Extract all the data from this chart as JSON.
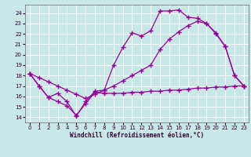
{
  "xlabel": "Windchill (Refroidissement éolien,°C)",
  "bg_color": "#c8e8e8",
  "line_color": "#990099",
  "grid_color": "#aadddd",
  "xlim": [
    -0.5,
    23.5
  ],
  "ylim": [
    13.5,
    24.8
  ],
  "yticks": [
    14,
    15,
    16,
    17,
    18,
    19,
    20,
    21,
    22,
    23,
    24
  ],
  "xticks": [
    0,
    1,
    2,
    3,
    4,
    5,
    6,
    7,
    8,
    9,
    10,
    11,
    12,
    13,
    14,
    15,
    16,
    17,
    18,
    19,
    20,
    21,
    22,
    23
  ],
  "line1_x": [
    0,
    1,
    2,
    3,
    4,
    5,
    6,
    7,
    8,
    9,
    10,
    11,
    12,
    13,
    14,
    15,
    16,
    17,
    18,
    19,
    20,
    21,
    22,
    23
  ],
  "line1_y": [
    18.2,
    17.0,
    15.9,
    16.3,
    15.5,
    14.1,
    15.5,
    16.5,
    16.6,
    19.0,
    20.7,
    22.1,
    21.8,
    22.3,
    24.2,
    24.2,
    24.3,
    23.6,
    23.5,
    23.0,
    22.1,
    20.8,
    18.0,
    17.0
  ],
  "line2_x": [
    0,
    1,
    2,
    3,
    4,
    5,
    6,
    7,
    8,
    9,
    10,
    11,
    12,
    13,
    14,
    15,
    16,
    17,
    18,
    19,
    20,
    21,
    22,
    23
  ],
  "line2_y": [
    18.2,
    17.8,
    17.4,
    17.0,
    16.6,
    16.2,
    15.8,
    16.2,
    16.6,
    17.0,
    17.5,
    18.0,
    18.5,
    19.0,
    20.5,
    21.5,
    22.2,
    22.8,
    23.2,
    23.0,
    22.0,
    20.8,
    18.0,
    17.0
  ],
  "line3_x": [
    0,
    1,
    2,
    3,
    4,
    5,
    6,
    7,
    8,
    9,
    10,
    11,
    12,
    13,
    14,
    15,
    16,
    17,
    18,
    19,
    20,
    21,
    22,
    23
  ],
  "line3_y": [
    18.2,
    17.0,
    15.9,
    15.5,
    15.1,
    14.2,
    15.3,
    16.4,
    16.3,
    16.3,
    16.3,
    16.4,
    16.4,
    16.5,
    16.5,
    16.6,
    16.6,
    16.7,
    16.8,
    16.8,
    16.9,
    16.9,
    17.0,
    17.0
  ]
}
